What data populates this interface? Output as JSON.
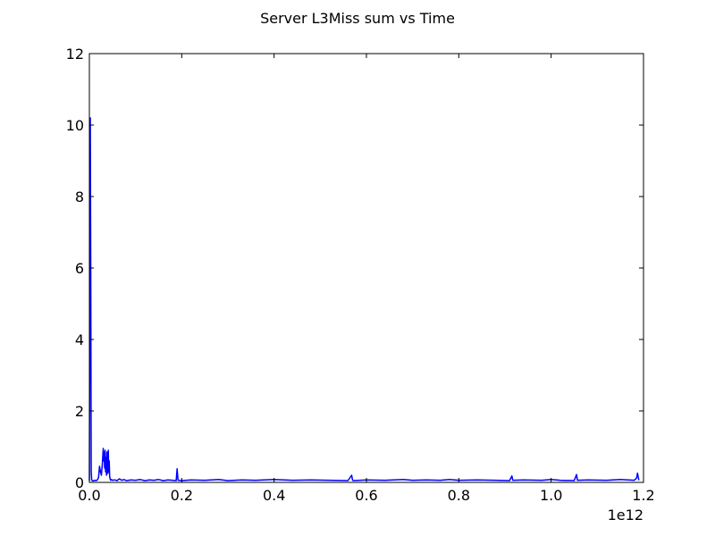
{
  "chart_data": {
    "type": "line",
    "title": "Server L3Miss sum vs Time",
    "xlabel": "",
    "ylabel": "",
    "x_offset_label": "1e12",
    "x_scale": 1000000000000.0,
    "xlim": [
      0.0,
      1.2
    ],
    "ylim": [
      0,
      12
    ],
    "x_ticks": [
      "0.0",
      "0.2",
      "0.4",
      "0.6",
      "0.8",
      "1.0",
      "1.2"
    ],
    "y_ticks": [
      "0",
      "2",
      "4",
      "6",
      "8",
      "10",
      "12"
    ],
    "grid": false,
    "legend": "none",
    "series": [
      {
        "color": "#0000ff",
        "x": [
          0.0,
          0.002,
          0.003,
          0.004,
          0.005,
          0.006,
          0.008,
          0.01,
          0.012,
          0.015,
          0.018,
          0.02,
          0.022,
          0.024,
          0.026,
          0.028,
          0.03,
          0.031,
          0.032,
          0.033,
          0.034,
          0.035,
          0.036,
          0.037,
          0.038,
          0.039,
          0.04,
          0.041,
          0.042,
          0.043,
          0.044,
          0.045,
          0.046,
          0.048,
          0.05,
          0.055,
          0.06,
          0.065,
          0.07,
          0.075,
          0.08,
          0.09,
          0.1,
          0.11,
          0.12,
          0.13,
          0.14,
          0.15,
          0.16,
          0.17,
          0.18,
          0.188,
          0.19,
          0.192,
          0.2,
          0.22,
          0.25,
          0.28,
          0.3,
          0.33,
          0.36,
          0.4,
          0.44,
          0.48,
          0.52,
          0.56,
          0.568,
          0.57,
          0.572,
          0.6,
          0.64,
          0.68,
          0.7,
          0.73,
          0.76,
          0.78,
          0.8,
          0.84,
          0.88,
          0.91,
          0.915,
          0.917,
          0.94,
          0.98,
          1.0,
          1.02,
          1.05,
          1.055,
          1.057,
          1.08,
          1.12,
          1.15,
          1.18,
          1.185,
          1.187,
          1.19
        ],
        "y": [
          0.05,
          10.2,
          6.0,
          0.3,
          0.08,
          0.05,
          0.04,
          0.05,
          0.06,
          0.05,
          0.08,
          0.15,
          0.45,
          0.3,
          0.2,
          0.5,
          0.95,
          0.6,
          0.85,
          0.4,
          0.9,
          0.3,
          0.7,
          0.2,
          0.85,
          0.5,
          0.25,
          0.9,
          0.3,
          0.6,
          0.15,
          0.1,
          0.06,
          0.08,
          0.06,
          0.07,
          0.05,
          0.1,
          0.06,
          0.08,
          0.05,
          0.07,
          0.06,
          0.08,
          0.05,
          0.07,
          0.06,
          0.08,
          0.05,
          0.07,
          0.06,
          0.05,
          0.38,
          0.06,
          0.05,
          0.07,
          0.06,
          0.08,
          0.05,
          0.07,
          0.06,
          0.08,
          0.06,
          0.07,
          0.06,
          0.05,
          0.2,
          0.06,
          0.05,
          0.07,
          0.06,
          0.08,
          0.06,
          0.07,
          0.06,
          0.08,
          0.06,
          0.07,
          0.06,
          0.05,
          0.18,
          0.06,
          0.07,
          0.06,
          0.08,
          0.06,
          0.05,
          0.22,
          0.06,
          0.07,
          0.06,
          0.08,
          0.06,
          0.12,
          0.26,
          0.06
        ]
      }
    ]
  }
}
